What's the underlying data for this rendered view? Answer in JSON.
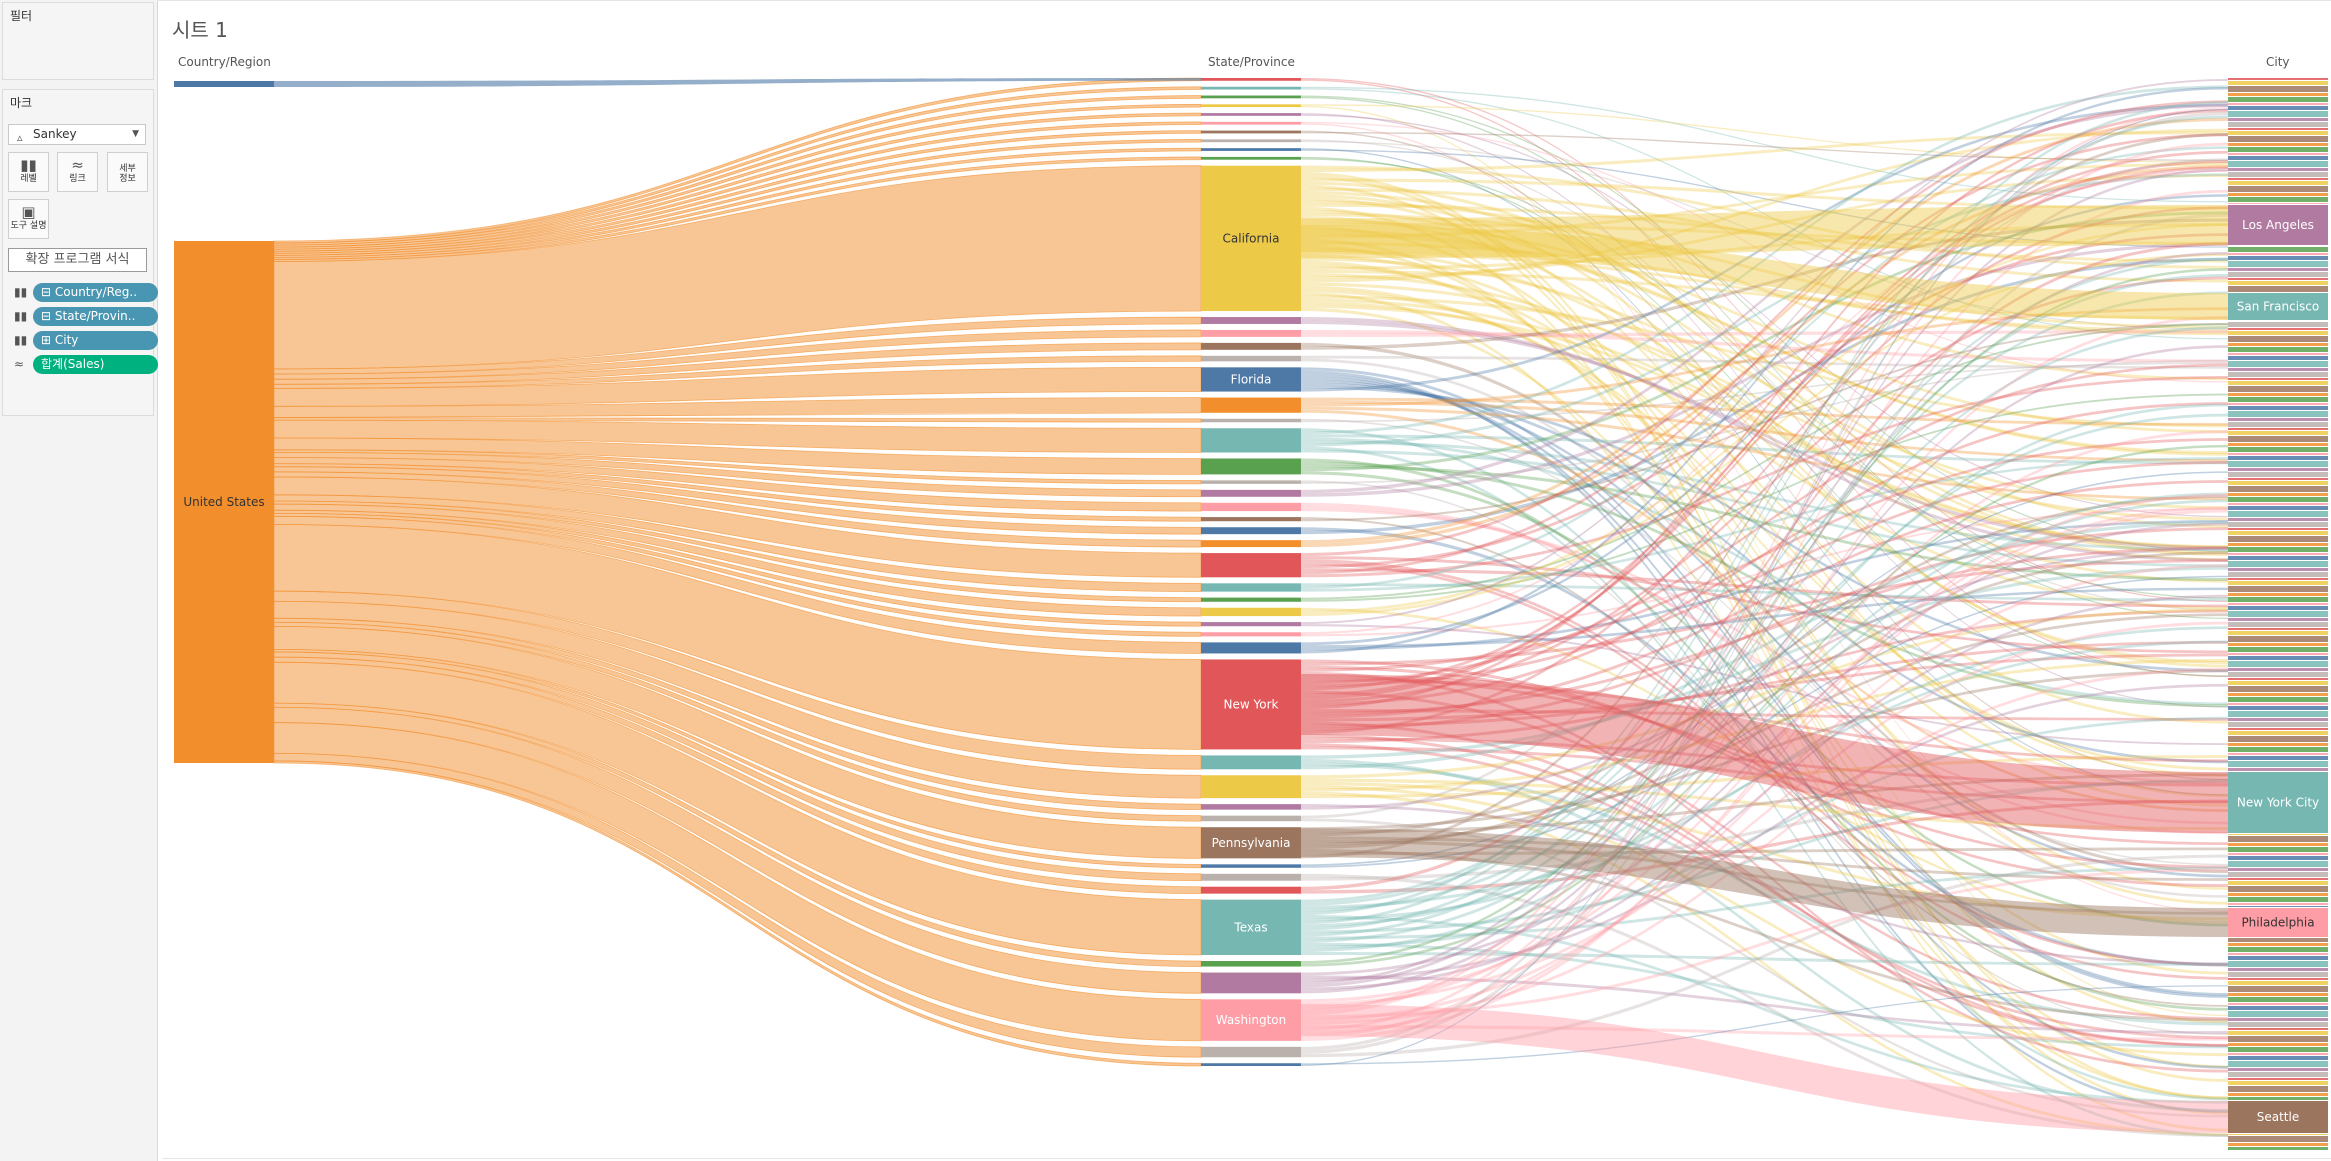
{
  "sidebar": {
    "filters": {
      "title": "필터"
    },
    "marks": {
      "title": "마크",
      "mark_type": "Sankey",
      "buttons": [
        {
          "label": "레벨",
          "icon": "bars-icon"
        },
        {
          "label": "링크",
          "icon": "link-waves-icon"
        },
        {
          "label": "세부\n정보",
          "icon": "detail-icon"
        },
        {
          "label": "도구 설명",
          "icon": "tooltip-icon"
        }
      ],
      "extension_format_button": "확장 프로그램 서식",
      "fields": [
        {
          "label": "⊟ Country/Reg..",
          "icon": "level-icon",
          "color": "#4996b2"
        },
        {
          "label": "⊟ State/Provin..",
          "icon": "level-icon",
          "color": "#4996b2"
        },
        {
          "label": "⊞ City",
          "icon": "level-icon",
          "color": "#4996b2"
        },
        {
          "label": "합계(Sales)",
          "icon": "link-icon",
          "color": "#00b180"
        }
      ]
    }
  },
  "sheet": {
    "title": "시트 1"
  },
  "chart_data": {
    "type": "sankey",
    "levels": [
      "Country/Region",
      "State/Province",
      "City"
    ],
    "measure": "합계(Sales)",
    "nodes_level1": [
      {
        "name": "",
        "color": "#4e79a7",
        "value": 0.7
      },
      {
        "name": "United States",
        "color": "#f28e2b",
        "value": 98
      }
    ],
    "nodes_level2": [
      {
        "name": "",
        "color": "#e15759",
        "value": 0.4
      },
      {
        "name": "",
        "color": "#76b7b2",
        "value": 0.4
      },
      {
        "name": "",
        "color": "#59a14f",
        "value": 0.4
      },
      {
        "name": "",
        "color": "#edc948",
        "value": 0.4
      },
      {
        "name": "",
        "color": "#b07aa1",
        "value": 0.4
      },
      {
        "name": "",
        "color": "#ff9da7",
        "value": 0.4
      },
      {
        "name": "",
        "color": "#9c755f",
        "value": 0.4
      },
      {
        "name": "",
        "color": "#bab0ac",
        "value": 0.4
      },
      {
        "name": "",
        "color": "#4e79a7",
        "value": 0.4
      },
      {
        "name": "",
        "color": "#59a14f",
        "value": 0.4
      },
      {
        "name": "California",
        "color": "#edc948",
        "value": 21
      },
      {
        "name": "",
        "color": "#b07aa1",
        "value": 1.0
      },
      {
        "name": "",
        "color": "#ff9da7",
        "value": 1.0
      },
      {
        "name": "",
        "color": "#9c755f",
        "value": 1.0
      },
      {
        "name": "",
        "color": "#bab0ac",
        "value": 0.8
      },
      {
        "name": "Florida",
        "color": "#4e79a7",
        "value": 3.5
      },
      {
        "name": "",
        "color": "#f28e2b",
        "value": 2.2
      },
      {
        "name": "",
        "color": "#bab0ac",
        "value": 0.5
      },
      {
        "name": "",
        "color": "#76b7b2",
        "value": 3.5
      },
      {
        "name": "",
        "color": "#59a14f",
        "value": 2.3
      },
      {
        "name": "",
        "color": "#bab0ac",
        "value": 0.5
      },
      {
        "name": "",
        "color": "#b07aa1",
        "value": 1.0
      },
      {
        "name": "",
        "color": "#ff9da7",
        "value": 1.2
      },
      {
        "name": "",
        "color": "#9c755f",
        "value": 0.6
      },
      {
        "name": "",
        "color": "#4e79a7",
        "value": 1.0
      },
      {
        "name": "",
        "color": "#f28e2b",
        "value": 1.0
      },
      {
        "name": "",
        "color": "#e15759",
        "value": 3.5
      },
      {
        "name": "",
        "color": "#76b7b2",
        "value": 1.2
      },
      {
        "name": "",
        "color": "#59a14f",
        "value": 0.6
      },
      {
        "name": "",
        "color": "#edc948",
        "value": 1.2
      },
      {
        "name": "",
        "color": "#b07aa1",
        "value": 0.6
      },
      {
        "name": "",
        "color": "#ff9da7",
        "value": 0.6
      },
      {
        "name": "",
        "color": "#4e79a7",
        "value": 1.6
      },
      {
        "name": "New York",
        "color": "#e15759",
        "value": 13
      },
      {
        "name": "",
        "color": "#76b7b2",
        "value": 2.0
      },
      {
        "name": "",
        "color": "#edc948",
        "value": 3.3
      },
      {
        "name": "",
        "color": "#b07aa1",
        "value": 0.8
      },
      {
        "name": "",
        "color": "#bab0ac",
        "value": 0.8
      },
      {
        "name": "Pennsylvania",
        "color": "#9c755f",
        "value": 4.5
      },
      {
        "name": "",
        "color": "#4e79a7",
        "value": 0.5
      },
      {
        "name": "",
        "color": "#bab0ac",
        "value": 1.0
      },
      {
        "name": "",
        "color": "#e15759",
        "value": 1.0
      },
      {
        "name": "Texas",
        "color": "#76b7b2",
        "value": 8.0
      },
      {
        "name": "",
        "color": "#59a14f",
        "value": 0.8
      },
      {
        "name": "",
        "color": "#b07aa1",
        "value": 3.0
      },
      {
        "name": "Washington",
        "color": "#ff9da7",
        "value": 6.0
      },
      {
        "name": "",
        "color": "#bab0ac",
        "value": 1.5
      },
      {
        "name": "",
        "color": "#4e79a7",
        "value": 0.4
      }
    ],
    "labeled_cities": [
      {
        "name": "Los Angeles",
        "color": "#b07aa1",
        "value": 8.0,
        "state": "California"
      },
      {
        "name": "San Francisco",
        "color": "#76b7b2",
        "value": 5.0,
        "state": "California"
      },
      {
        "name": "New York City",
        "color": "#76b7b2",
        "value": 11.0,
        "state": "New York"
      },
      {
        "name": "Philadelphia",
        "color": "#ff9da7",
        "value": 4.5,
        "state": "Pennsylvania"
      },
      {
        "name": "Seattle",
        "color": "#9c755f",
        "value": 5.0,
        "state": "Washington"
      }
    ],
    "grid": false,
    "legend": "none"
  }
}
